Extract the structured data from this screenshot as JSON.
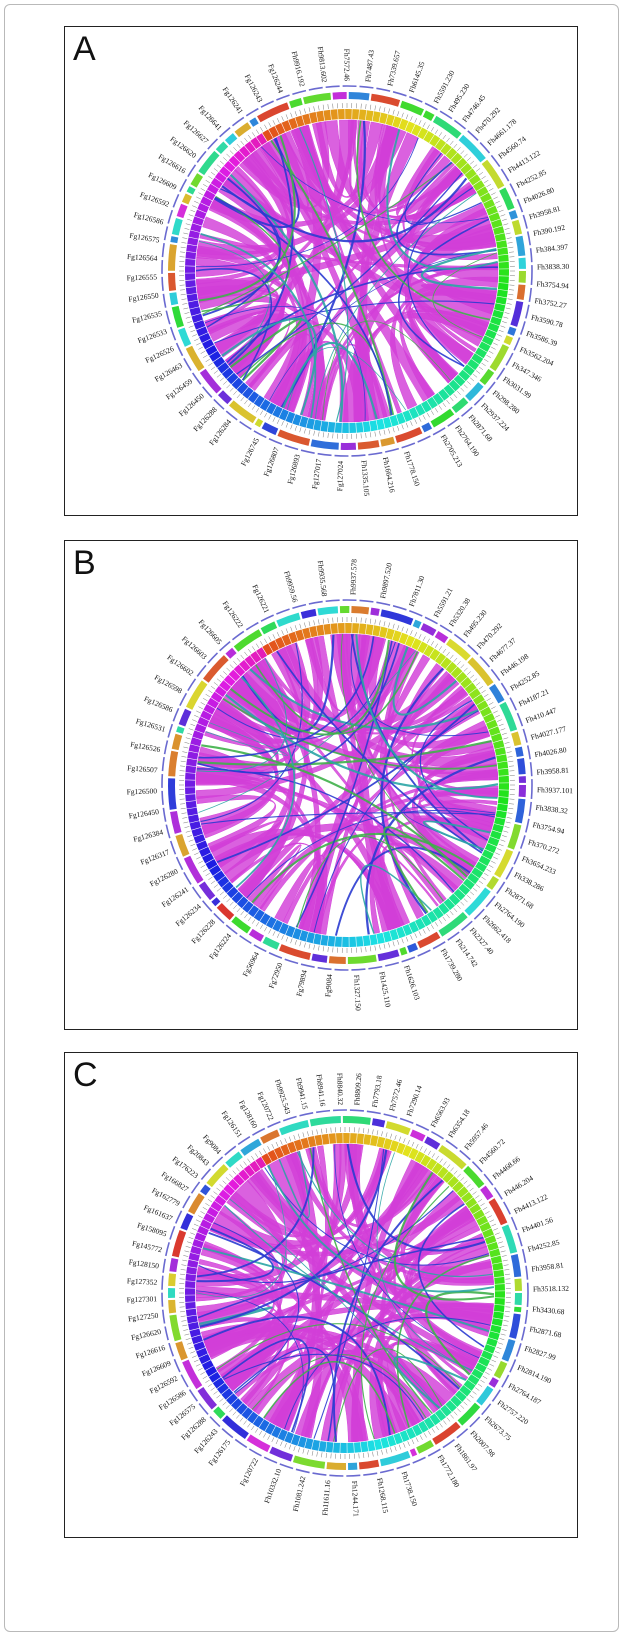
{
  "panels": [
    {
      "letter": "A",
      "left_labels": [
        "Fg126284",
        "Fg126288",
        "Fg126450",
        "Fg126459",
        "Fg126463",
        "Fg126526",
        "Fg126533",
        "Fg126535",
        "Fg126550",
        "Fg126555",
        "Fg126564",
        "Fg126575",
        "Fg126586",
        "Fg126592",
        "Fg126609",
        "Fg126616",
        "Fg126620",
        "Fg126627",
        "Fg126641"
      ],
      "top_labels": [
        "Fg126241",
        "Fg126243",
        "Fg126244",
        "Fh9916.192",
        "Fh9813.602",
        "Fh7572.46",
        "Fh7487.43",
        "Fh7339.657",
        "Fh6145.35"
      ],
      "right_labels": [
        "Fh5591.230",
        "Fh495.230",
        "Fh4746.45",
        "Fh470.292",
        "Fh4661.178",
        "Fh4560.74",
        "Fh4413.122",
        "Fh4252.85",
        "Fh4026.80",
        "Fh3958.81",
        "Fh390.192",
        "Fh384.397",
        "Fh3838.30",
        "Fh3754.94",
        "Fh3752.27",
        "Fh3590.78",
        "Fh3586.39",
        "Fh3562.204",
        "Fh347.346",
        "Fh3031.99",
        "Fh298.280",
        "Fh2937.224",
        "Fh2871.68",
        "Fh2764.190",
        "Fh2705.213"
      ],
      "bottom_labels": [
        "Fh1778.150",
        "Fh1664.216",
        "Fh1335.105",
        "Fg127024",
        "Fg127017",
        "Fg126893",
        "Fg126807",
        "Fg126745"
      ]
    },
    {
      "letter": "B",
      "left_labels": [
        "Fg126224",
        "Fg126228",
        "Fg126234",
        "Fg126241",
        "Fg126280",
        "Fg126317",
        "Fg126384",
        "Fg126450",
        "Fg126500",
        "Fg126507",
        "Fg126526",
        "Fg126531",
        "Fg126586",
        "Fg126598",
        "Fg126602",
        "Fg126603",
        "Fg126605"
      ],
      "top_labels": [
        "Fg126222",
        "Fg126221",
        "Fh9959.56",
        "Fh9935.568",
        "Fh9937.578",
        "Fh9897.520",
        "Fh7811.30"
      ],
      "right_labels": [
        "Fh5591.21",
        "Fh5320.38",
        "Fh495.230",
        "Fh470.292",
        "Fh4677.37",
        "Fh446.198",
        "Fh4252.85",
        "Fh4187.21",
        "Fh410.447",
        "Fh4027.177",
        "Fh4026.80",
        "Fh3958.81",
        "Fh3937.101",
        "Fh3838.32",
        "Fh3754.94",
        "Fh370.272",
        "Fh3654.233",
        "Fh338.286",
        "Fh2871.68",
        "Fh2764.190",
        "Fh2662.418",
        "Fh2327.40",
        "Fh214.742",
        "Fh1739.280"
      ],
      "bottom_labels": [
        "Fh1626.103",
        "Fh1425.110",
        "Fh1327.150",
        "Fg9084",
        "Fg79894",
        "Fg72950",
        "Fg56964"
      ]
    },
    {
      "letter": "C",
      "left_labels": [
        "Fg126175",
        "Fg126243",
        "Fg126288",
        "Fg126575",
        "Fg126586",
        "Fg126592",
        "Fg126609",
        "Fg126616",
        "Fg126620",
        "Fg127250",
        "Fg127301",
        "Fg127352",
        "Fg128150",
        "Fg145772",
        "Fg158095",
        "Fg161637",
        "Fg162779",
        "Fg166827",
        "Fg176223",
        "Fg20843",
        "Fg9084"
      ],
      "top_labels": [
        "Fg126151",
        "Fg128160",
        "Fg120722",
        "Fh9925.543",
        "Fh9941.15",
        "Fh8941.16",
        "Fh8840.32",
        "Fh8809.26",
        "Fh7793.18",
        "Fh7572.46",
        "Fh7290.14"
      ],
      "right_labels": [
        "Fh6563.93",
        "Fh6354.18",
        "Fh5957.46",
        "Fh4560.72",
        "Fh4468.66",
        "Fh446.204",
        "Fh4413.122",
        "Fh4401.56",
        "Fh4252.85",
        "Fh3958.81",
        "Fh3518.132",
        "Fh3430.68",
        "Fh2871.68",
        "Fh2827.99",
        "Fh2814.190",
        "Fh2764.187",
        "Fh2757.220",
        "Fh2673.75",
        "Fh2007.98",
        "Fh1861.97",
        "Fh1772.180"
      ],
      "bottom_labels": [
        "Fh1738.150",
        "Fh1268.115",
        "Fh1244.171",
        "Fh11611.16",
        "Fh1081.242",
        "Fh10332.10",
        "Fg120722"
      ]
    }
  ],
  "colors": {
    "ribbon_main": "#d23ed8",
    "ribbon_blue": "#2a3bd0",
    "ribbon_teal": "#2aa5a5",
    "ribbon_green": "#3fb04a",
    "frame": "#222222"
  }
}
